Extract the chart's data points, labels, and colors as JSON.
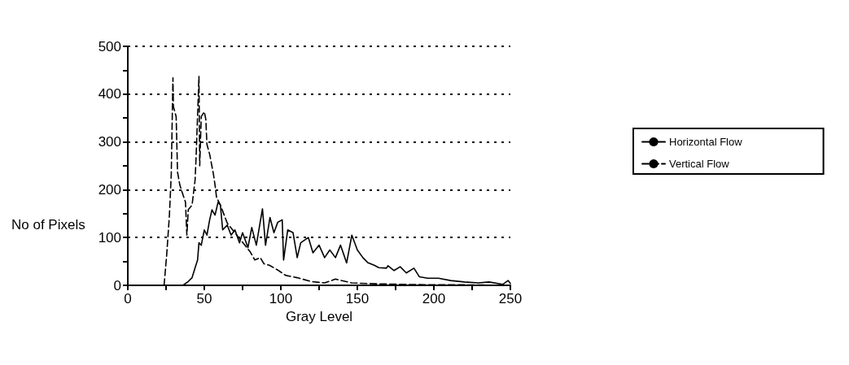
{
  "chart_data": {
    "type": "line",
    "xlabel": "Gray Level",
    "ylabel": "No of Pixels",
    "xlim": [
      0,
      250
    ],
    "xticks": [
      0,
      50,
      100,
      150,
      200,
      250
    ],
    "ylim": [
      0,
      500
    ],
    "yticks": [
      0,
      100,
      200,
      300,
      400,
      500
    ],
    "grid": "y",
    "legend": "right",
    "marker": "none",
    "series": [
      {
        "name": "Horizontal Flow",
        "color": "#000000",
        "line_style": "solid",
        "x": [
          36,
          39.5,
          42,
          44,
          45.6,
          46.5,
          48,
          50,
          51.7,
          53.5,
          55,
          57,
          59,
          60.5,
          62,
          65,
          67.5,
          70,
          73,
          75,
          78.5,
          81,
          84,
          86.5,
          88,
          90,
          92.9,
          95.5,
          98,
          100.9,
          101.8,
          104.5,
          108,
          110.7,
          113,
          118,
          121,
          125,
          128.6,
          132,
          135.7,
          139,
          143,
          146.4,
          150,
          153.6,
          157,
          161,
          164,
          169,
          170,
          174,
          178,
          182,
          187,
          190.5,
          196,
          203,
          211,
          220,
          229,
          236,
          245,
          248.5,
          250
        ],
        "values": [
          0,
          8,
          16,
          37,
          53,
          89,
          84,
          116,
          105,
          137,
          158,
          147,
          174,
          168,
          116,
          126,
          105,
          116,
          89,
          110,
          79,
          121,
          84,
          132,
          160,
          84,
          142,
          110,
          132,
          137,
          53,
          116,
          110,
          58,
          89,
          100,
          68,
          84,
          58,
          74,
          58,
          84,
          47,
          105,
          74,
          58,
          47,
          42,
          37,
          36,
          41,
          31,
          39,
          26,
          36,
          18,
          15,
          15,
          10,
          7,
          5,
          7,
          2,
          10,
          4
        ]
      },
      {
        "name": "Vertical Flow",
        "color": "#000000",
        "line_style": "dashed",
        "x": [
          23.7,
          25.4,
          27.2,
          28.4,
          29.5,
          29.8,
          31.6,
          32.5,
          34,
          36,
          37.7,
          38.6,
          39.5,
          42,
          44,
          44.7,
          46.5,
          47,
          48,
          50,
          51,
          51.7,
          53.5,
          56,
          57,
          58,
          60.5,
          65,
          70,
          75,
          80,
          83,
          86.5,
          89,
          92.5,
          98,
          103,
          110.7,
          119.7,
          128.6,
          135.7,
          146.4,
          164,
          180,
          200,
          220,
          250
        ],
        "values": [
          0,
          63,
          147,
          232,
          434,
          374,
          353,
          237,
          210,
          190,
          174,
          105,
          158,
          168,
          221,
          274,
          437,
          250,
          353,
          363,
          347,
          295,
          274,
          232,
          210,
          184,
          168,
          130,
          110,
          90,
          70,
          53,
          58,
          45,
          42,
          32,
          21,
          16,
          8,
          5,
          13,
          5,
          3,
          2,
          1,
          1,
          0
        ]
      }
    ]
  }
}
